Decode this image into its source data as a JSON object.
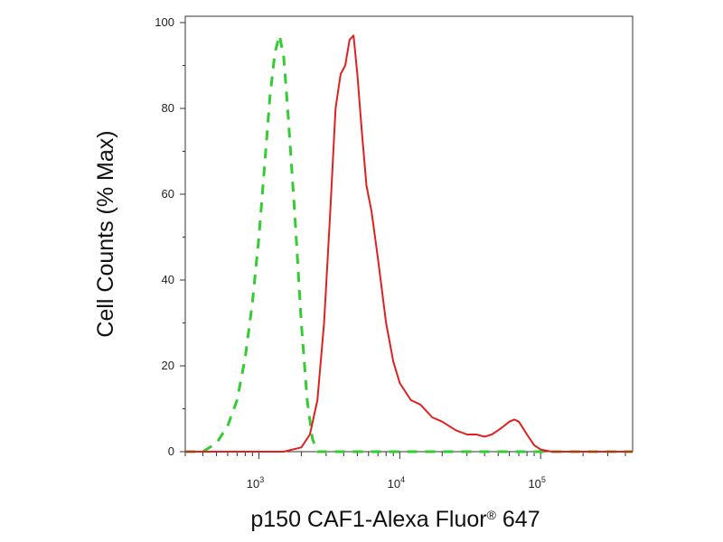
{
  "chart_data": {
    "type": "line",
    "title": "",
    "xlabel": "p150 CAF1-Alexa Fluor",
    "xlabel_superscript": "®",
    "xlabel_suffix": " 647",
    "ylabel": "Cell Counts (% Max)",
    "xscale": "log",
    "xlim": [
      300,
      450000
    ],
    "ylim": [
      0,
      100
    ],
    "x_ticks": [
      {
        "value": 1000,
        "base": "10",
        "exp": "3"
      },
      {
        "value": 10000,
        "base": "10",
        "exp": "4"
      },
      {
        "value": 100000,
        "base": "10",
        "exp": "5"
      }
    ],
    "y_ticks": [
      0,
      20,
      40,
      60,
      80,
      100
    ],
    "grid": false,
    "legend": "none",
    "series": [
      {
        "style": "dashed",
        "color": "#33cc33",
        "x": [
          300,
          400,
          500,
          600,
          700,
          800,
          900,
          1000,
          1100,
          1200,
          1300,
          1400,
          1500,
          1600,
          1800,
          2000,
          2200,
          2400,
          2600,
          3000,
          5000,
          10000,
          20000,
          50000,
          100000,
          200000,
          450000
        ],
        "y": [
          0,
          0,
          2,
          6,
          12,
          22,
          35,
          50,
          67,
          83,
          93,
          97,
          92,
          80,
          55,
          30,
          12,
          3,
          0,
          0,
          0,
          0,
          0,
          0,
          0,
          0,
          0
        ]
      },
      {
        "style": "solid",
        "color": "#e02020",
        "x": [
          300,
          1000,
          1500,
          2000,
          2300,
          2600,
          2900,
          3200,
          3500,
          3800,
          4100,
          4400,
          4700,
          5000,
          5400,
          5800,
          6300,
          7000,
          8000,
          9000,
          10000,
          12000,
          14000,
          17000,
          20000,
          25000,
          30000,
          35000,
          40000,
          45000,
          50000,
          55000,
          60000,
          65000,
          70000,
          75000,
          80000,
          90000,
          100000,
          120000,
          150000,
          200000,
          450000
        ],
        "y": [
          0,
          0,
          0,
          1,
          4,
          12,
          30,
          55,
          80,
          88,
          90,
          96,
          97,
          88,
          74,
          62,
          56,
          45,
          30,
          21,
          16,
          12,
          11,
          8,
          7,
          5,
          4,
          4,
          3.5,
          4,
          5,
          6,
          7,
          7.5,
          7,
          5.5,
          4,
          1.5,
          0.5,
          0,
          0,
          0,
          0
        ]
      }
    ]
  }
}
